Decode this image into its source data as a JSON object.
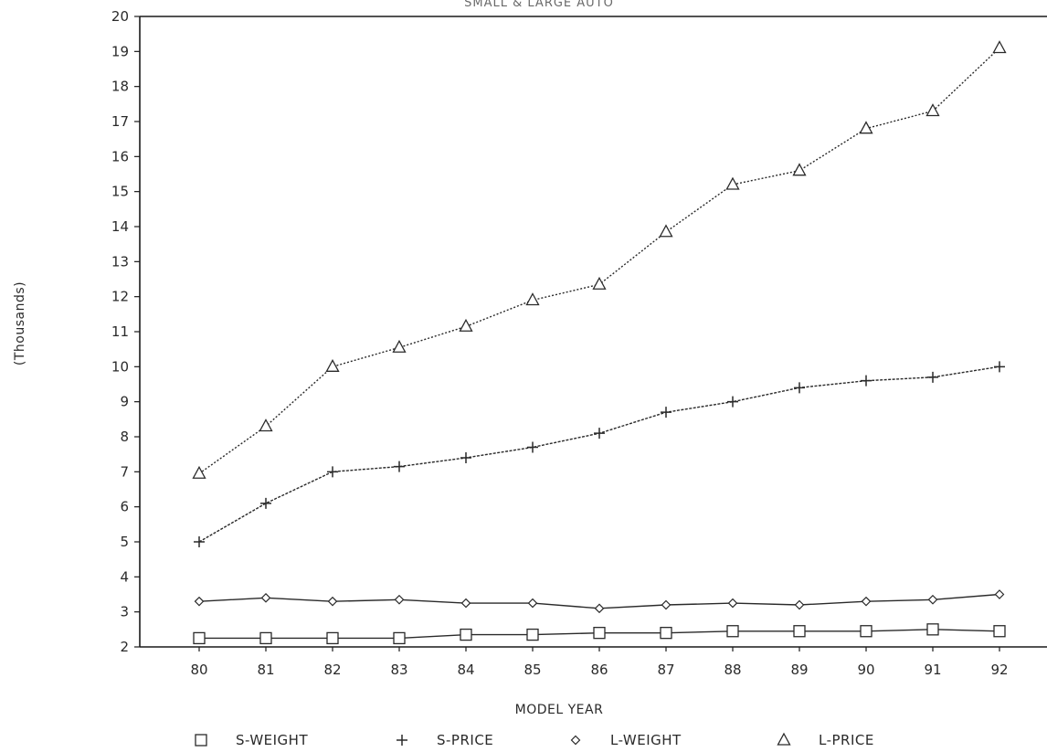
{
  "chart_data": {
    "type": "line",
    "title": "SMALL & LARGE AUTO",
    "xlabel": "MODEL YEAR",
    "ylabel": "(Thousands)",
    "categories": [
      "80",
      "81",
      "82",
      "83",
      "84",
      "85",
      "86",
      "87",
      "88",
      "89",
      "90",
      "91",
      "92"
    ],
    "ylim": [
      2,
      20
    ],
    "yticks": [
      "2",
      "3",
      "4",
      "5",
      "6",
      "7",
      "8",
      "9",
      "10",
      "11",
      "12",
      "13",
      "14",
      "15",
      "16",
      "17",
      "18",
      "19",
      "20"
    ],
    "grid": false,
    "legend_position": "bottom",
    "series": [
      {
        "name": "S-WEIGHT",
        "marker": "square",
        "line_style": "solid",
        "values": [
          2.25,
          2.25,
          2.25,
          2.25,
          2.35,
          2.35,
          2.4,
          2.4,
          2.45,
          2.45,
          2.45,
          2.5,
          2.45
        ]
      },
      {
        "name": "S-PRICE",
        "marker": "plus",
        "line_style": "dotted-solid",
        "values": [
          5.0,
          6.1,
          7.0,
          7.15,
          7.4,
          7.7,
          8.1,
          8.7,
          9.0,
          9.4,
          9.6,
          9.7,
          10.0
        ]
      },
      {
        "name": "L-WEIGHT",
        "marker": "diamond",
        "line_style": "solid",
        "values": [
          3.3,
          3.4,
          3.3,
          3.35,
          3.25,
          3.25,
          3.1,
          3.2,
          3.25,
          3.2,
          3.3,
          3.35,
          3.5
        ]
      },
      {
        "name": "L-PRICE",
        "marker": "triangle",
        "line_style": "dotted",
        "values": [
          6.95,
          8.3,
          10.0,
          10.55,
          11.15,
          11.9,
          12.35,
          13.85,
          15.2,
          15.6,
          16.8,
          17.3,
          19.1
        ]
      }
    ],
    "colors": {
      "ink": "#2a2a2a",
      "axis": "#1a1a1a"
    }
  }
}
